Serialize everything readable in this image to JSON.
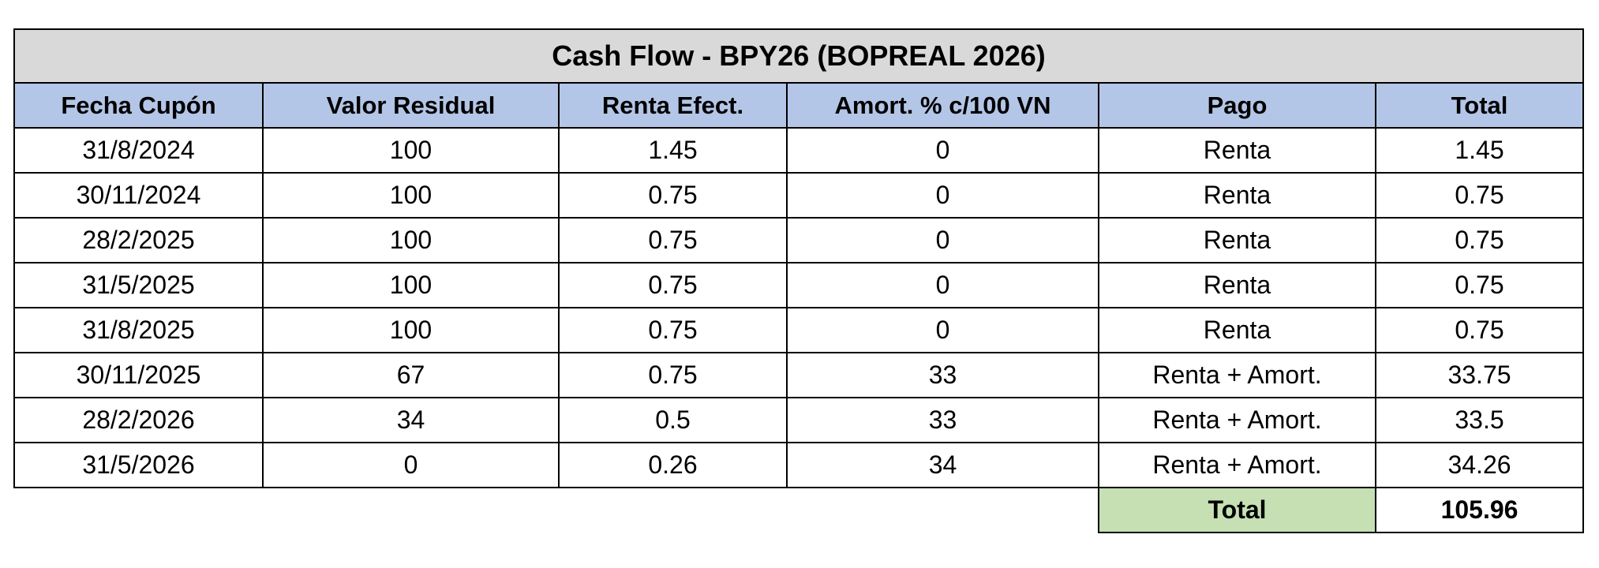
{
  "table": {
    "title": "Cash Flow - BPY26 (BOPREAL 2026)",
    "headers": [
      "Fecha Cupón",
      "Valor Residual",
      "Renta Efect.",
      "Amort. % c/100 VN",
      "Pago",
      "Total"
    ],
    "rows": [
      [
        "31/8/2024",
        100,
        1.45,
        0,
        "Renta",
        1.45
      ],
      [
        "30/11/2024",
        100,
        0.75,
        0,
        "Renta",
        0.75
      ],
      [
        "28/2/2025",
        100,
        0.75,
        0,
        "Renta",
        0.75
      ],
      [
        "31/5/2025",
        100,
        0.75,
        0,
        "Renta",
        0.75
      ],
      [
        "31/8/2025",
        100,
        0.75,
        0,
        "Renta",
        0.75
      ],
      [
        "30/11/2025",
        67,
        0.75,
        33,
        "Renta + Amort.",
        33.75
      ],
      [
        "28/2/2026",
        34,
        0.5,
        33,
        "Renta + Amort.",
        33.5
      ],
      [
        "31/5/2026",
        0,
        0.26,
        34,
        "Renta + Amort.",
        34.26
      ]
    ],
    "total": {
      "label": "Total",
      "value": 105.96
    }
  }
}
